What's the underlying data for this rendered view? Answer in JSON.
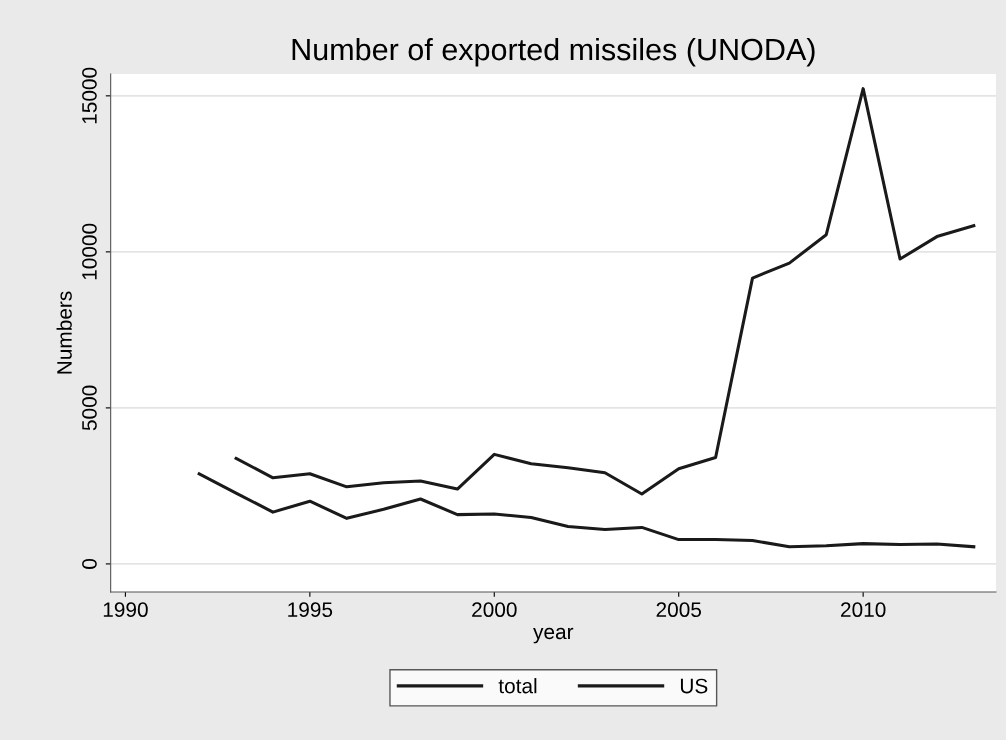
{
  "chart_data": {
    "type": "line",
    "title": "Number of exported missiles (UNODA)",
    "xlabel": "year",
    "ylabel": "Numbers",
    "series": [
      {
        "name": "total",
        "color": "#1a1a1a",
        "x": [
          1993,
          1994,
          1995,
          1996,
          1997,
          1998,
          1999,
          2000,
          2001,
          2002,
          2003,
          2004,
          2005,
          2006,
          2007,
          2008,
          2009,
          2010,
          2011,
          2012,
          2013
        ],
        "values": [
          3380,
          2760,
          2890,
          2470,
          2600,
          2660,
          2400,
          3510,
          3210,
          3080,
          2920,
          2240,
          3050,
          3410,
          9160,
          9640,
          10550,
          15230,
          9770,
          10490,
          10840
        ]
      },
      {
        "name": "US",
        "color": "#1a1a1a",
        "x": [
          1992,
          1993,
          1994,
          1995,
          1996,
          1997,
          1998,
          1999,
          2000,
          2001,
          2002,
          2003,
          2004,
          2005,
          2006,
          2007,
          2008,
          2009,
          2010,
          2011,
          2012,
          2013
        ],
        "values": [
          2890,
          2270,
          1660,
          2010,
          1460,
          1750,
          2080,
          1580,
          1600,
          1490,
          1200,
          1100,
          1170,
          780,
          780,
          750,
          550,
          580,
          650,
          620,
          640,
          550
        ]
      }
    ],
    "xlim": [
      1989.6,
      2013.6
    ],
    "xticks": [
      1990,
      1995,
      2000,
      2005,
      2010
    ],
    "ylim": [
      -900,
      15700
    ],
    "yticks": [
      0,
      5000,
      10000,
      15000
    ],
    "grid": "y",
    "legend": "bottom",
    "marker": "none",
    "line_style": "solid"
  }
}
